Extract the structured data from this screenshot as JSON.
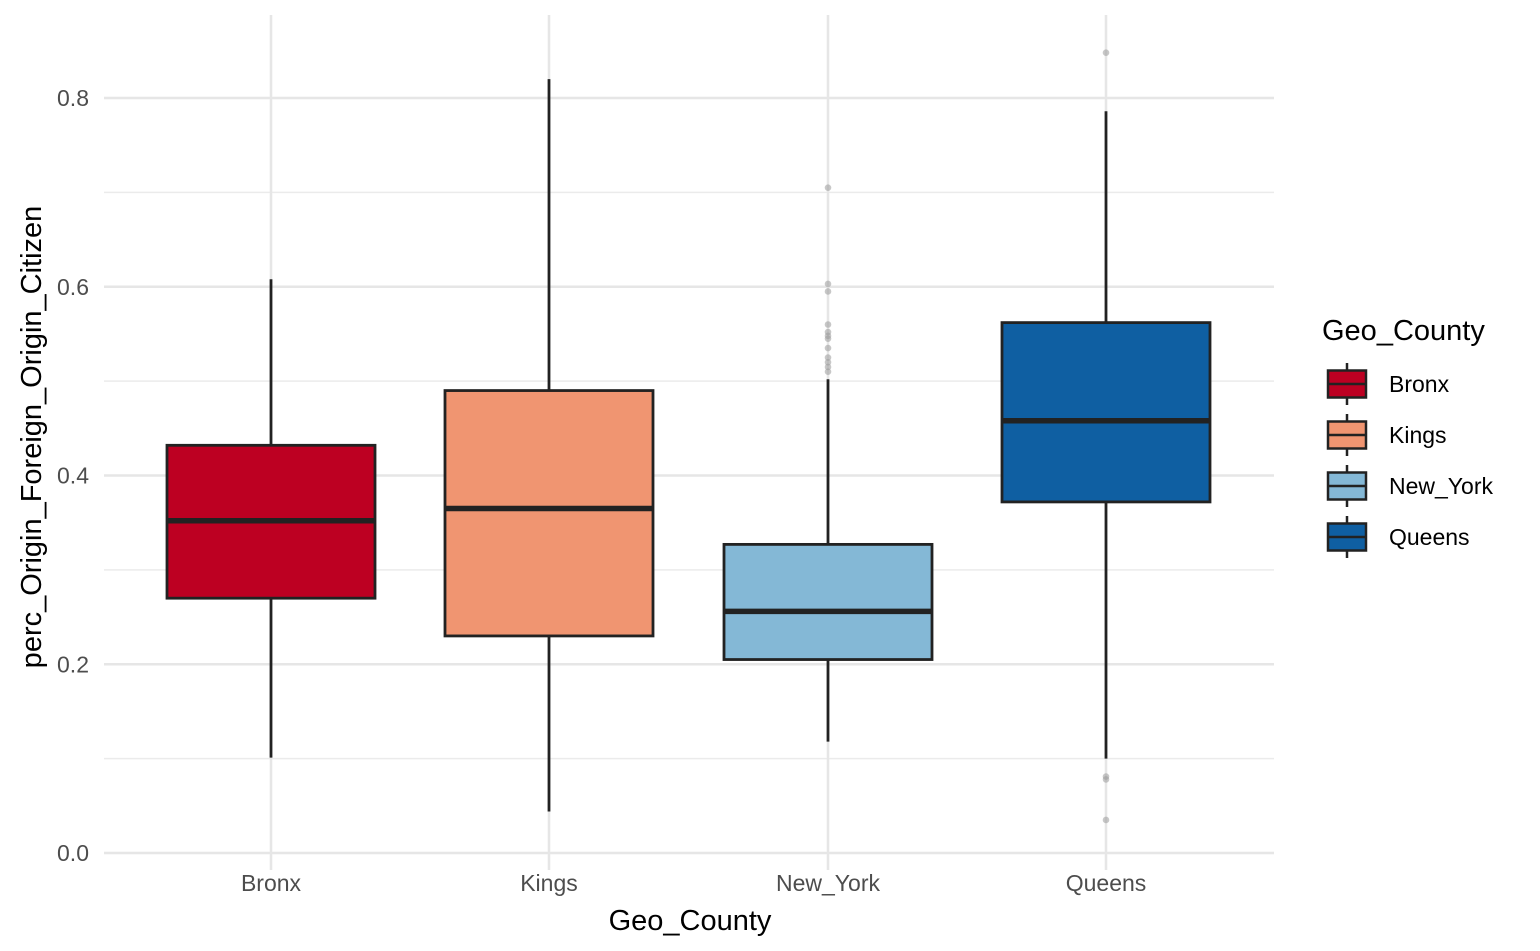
{
  "chart_data": {
    "type": "box",
    "title": "",
    "xlabel": "Geo_County",
    "ylabel": "perc_Origin_Foreign_Origin_Citizen",
    "ylim": [
      0.0,
      0.88
    ],
    "yticks": [
      0.0,
      0.2,
      0.4,
      0.6,
      0.8
    ],
    "ytick_labels": [
      "0.0",
      "0.2",
      "0.4",
      "0.6",
      "0.8"
    ],
    "grid": true,
    "legend": {
      "title": "Geo_County",
      "position": "right"
    },
    "categories": [
      "Bronx",
      "Kings",
      "New_York",
      "Queens"
    ],
    "series": [
      {
        "name": "Bronx",
        "color": "#BD0022",
        "whisker_low": 0.101,
        "q1": 0.27,
        "median": 0.352,
        "q3": 0.432,
        "whisker_high": 0.608,
        "outliers": []
      },
      {
        "name": "Kings",
        "color": "#F09571",
        "whisker_low": 0.044,
        "q1": 0.23,
        "median": 0.365,
        "q3": 0.49,
        "whisker_high": 0.82,
        "outliers": []
      },
      {
        "name": "New_York",
        "color": "#84B8D6",
        "whisker_low": 0.118,
        "q1": 0.205,
        "median": 0.256,
        "q3": 0.327,
        "whisker_high": 0.502,
        "outliers": [
          0.51,
          0.515,
          0.52,
          0.525,
          0.535,
          0.545,
          0.548,
          0.552,
          0.56,
          0.595,
          0.603,
          0.705
        ]
      },
      {
        "name": "Queens",
        "color": "#0F5FA2",
        "whisker_low": 0.1,
        "q1": 0.372,
        "median": 0.458,
        "q3": 0.562,
        "whisker_high": 0.786,
        "outliers": [
          0.035,
          0.078,
          0.081,
          0.848
        ]
      }
    ]
  }
}
